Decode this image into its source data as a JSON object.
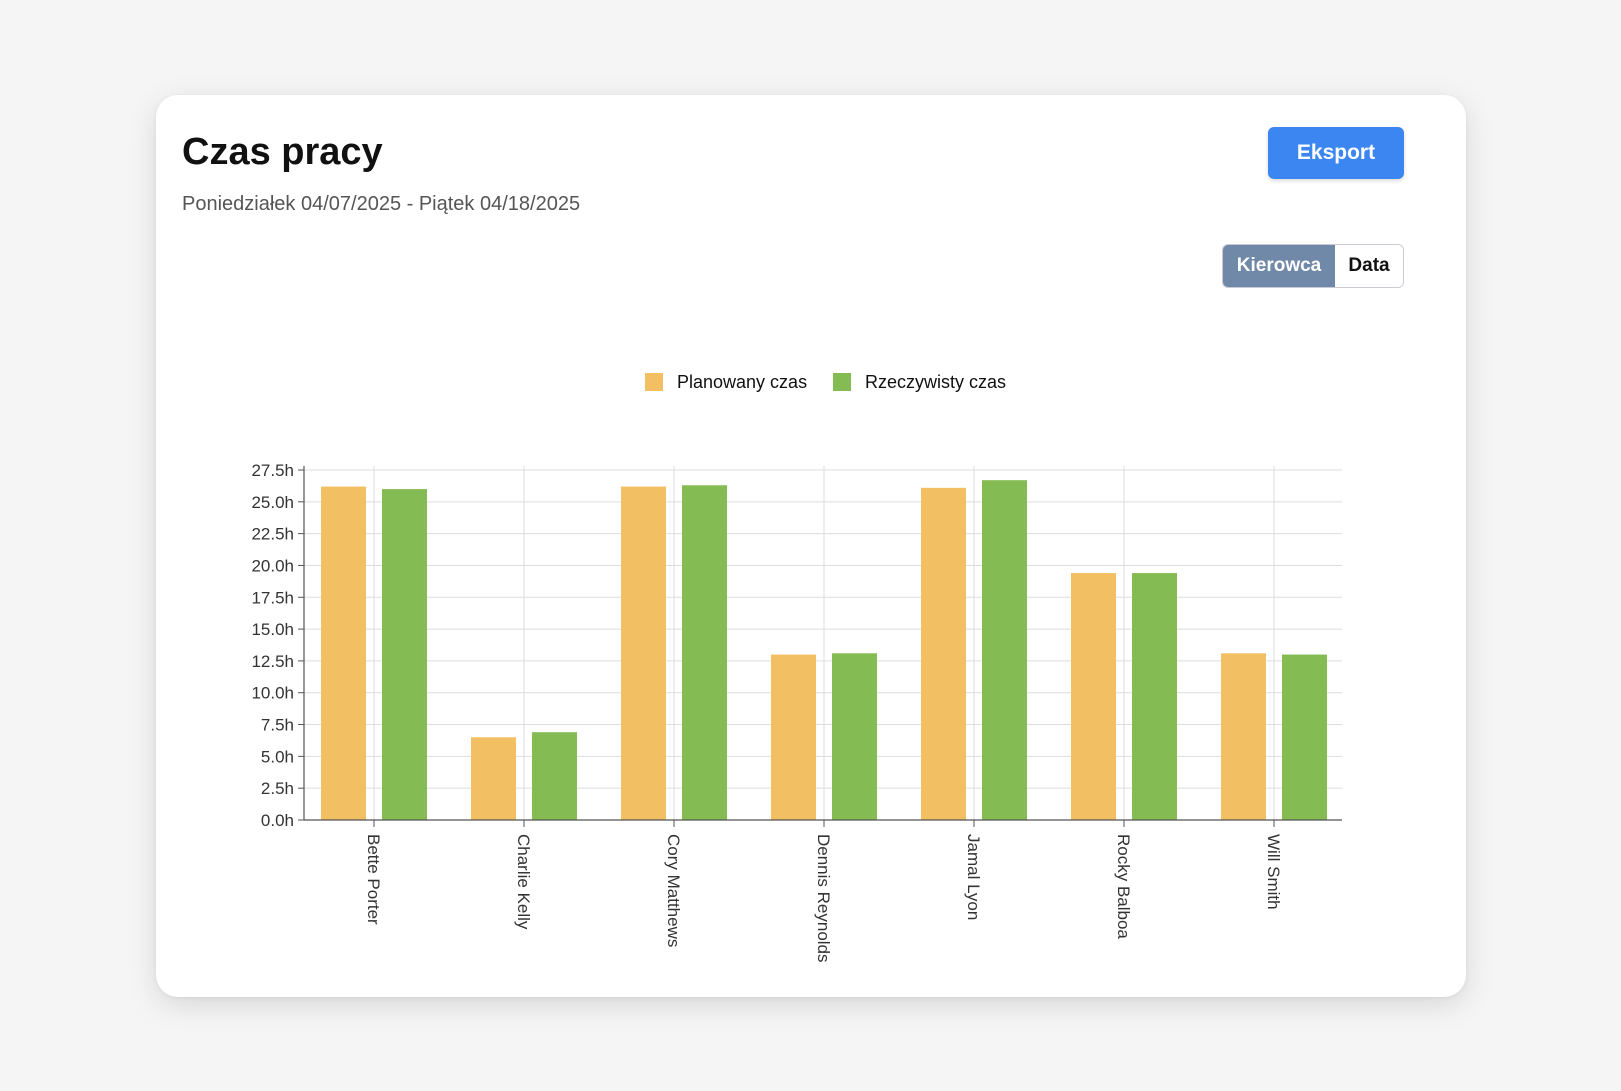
{
  "header": {
    "title": "Czas pracy",
    "subtitle": "Poniedziałek 04/07/2025 - Piątek 04/18/2025",
    "export_label": "Eksport"
  },
  "toggle": {
    "options": [
      "Kierowca",
      "Data"
    ],
    "active": "Kierowca"
  },
  "colors": {
    "planned": "#f2bf62",
    "actual": "#84bb53",
    "accent": "#3b86f0",
    "toggle_active": "#7189a8"
  },
  "chart_data": {
    "type": "bar",
    "title": "",
    "xlabel": "",
    "ylabel": "",
    "legend_position": "top-center",
    "grid": true,
    "ylim": [
      0,
      27.5
    ],
    "yticks": [
      "0.0h",
      "2.5h",
      "5.0h",
      "7.5h",
      "10.0h",
      "12.5h",
      "15.0h",
      "17.5h",
      "20.0h",
      "22.5h",
      "25.0h",
      "27.5h"
    ],
    "categories": [
      "Bette Porter",
      "Charlie Kelly",
      "Cory Matthews",
      "Dennis Reynolds",
      "Jamal Lyon",
      "Rocky Balboa",
      "Will Smith"
    ],
    "series": [
      {
        "name": "Planowany czas",
        "values": [
          26.2,
          6.5,
          26.2,
          13.0,
          26.1,
          19.4,
          13.1
        ]
      },
      {
        "name": "Rzeczywisty czas",
        "values": [
          26.0,
          6.9,
          26.3,
          13.1,
          26.7,
          19.4,
          13.0
        ]
      }
    ]
  }
}
